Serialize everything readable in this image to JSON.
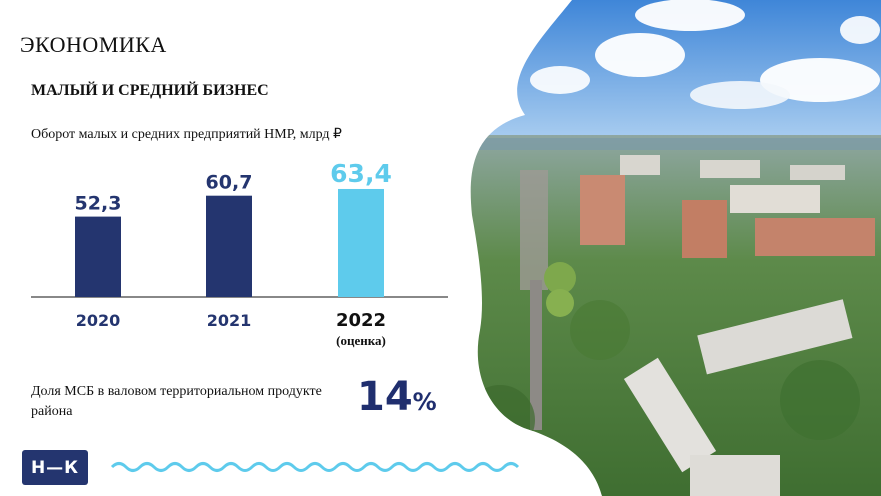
{
  "header": {
    "title": "ЭКОНОМИКА",
    "subtitle": "МАЛЫЙ И СРЕДНИЙ БИЗНЕС"
  },
  "chart_data": {
    "type": "bar",
    "title": "Оборот малых и средних предприятий НМР, млрд ₽",
    "categories": [
      "2020",
      "2021",
      "2022"
    ],
    "category_notes": [
      "",
      "",
      "(оценка)"
    ],
    "values": [
      52.3,
      60.7,
      63.4
    ],
    "value_labels": [
      "52,3",
      "60,7",
      "63,4"
    ],
    "colors": [
      "#24356f",
      "#24356f",
      "#5ecbec"
    ],
    "ylim": [
      0,
      70
    ]
  },
  "stat": {
    "label": "Доля МСБ в валовом территориальном продукте района",
    "value": "14",
    "unit": "%"
  },
  "logo": {
    "text": "Н—К"
  },
  "colors": {
    "navy": "#24356f",
    "accent": "#5ecbec"
  }
}
